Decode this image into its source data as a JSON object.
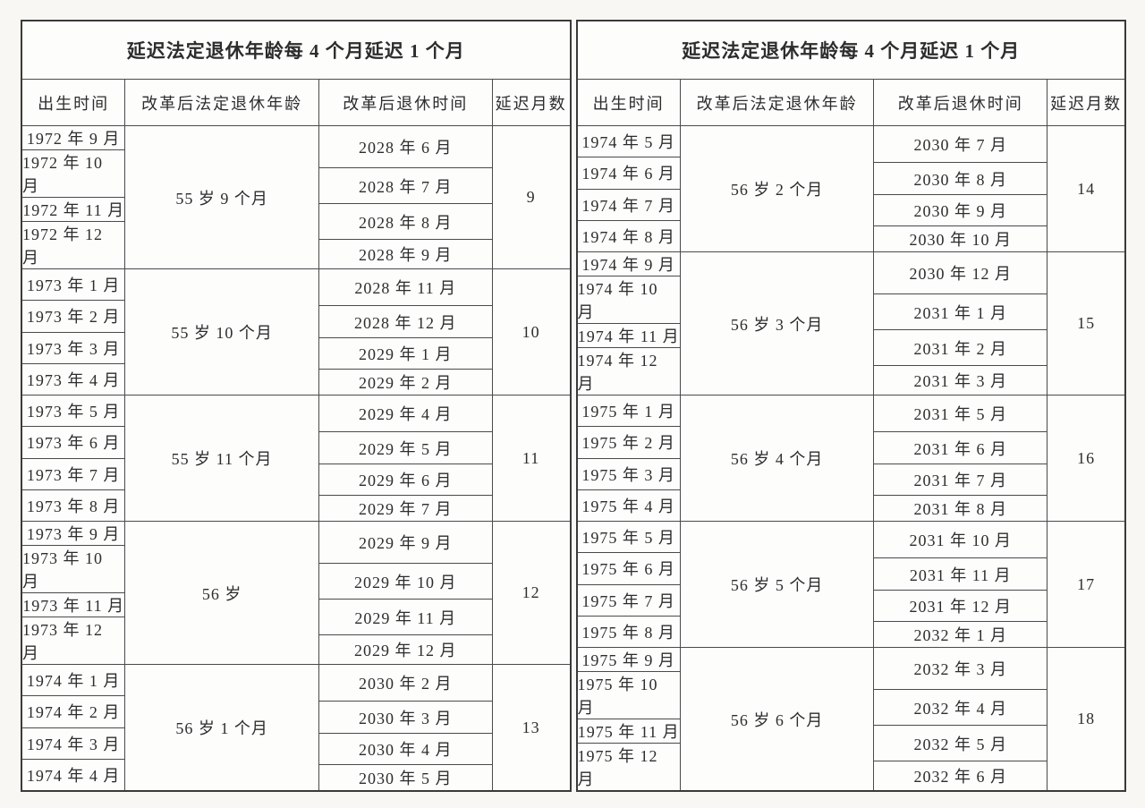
{
  "colors": {
    "page_background": "#f8f7f4",
    "table_background": "#fdfdfc",
    "outer_border": "#3a3a3a",
    "grid_line": "#4a4a4a",
    "text": "#2d2d2d"
  },
  "tables": [
    {
      "title": "延迟法定退休年龄每 4 个月延迟 1 个月",
      "columns": [
        "出生时间",
        "改革后法定退休年龄",
        "改革后退休时间",
        "延迟月数"
      ],
      "groups": [
        {
          "births": [
            "1972 年 9 月",
            "1972 年 10 月",
            "1972 年 11 月",
            "1972 年 12 月"
          ],
          "age": "55 岁 9 个月",
          "retirements": [
            "2028 年 6 月",
            "2028 年 7 月",
            "2028 年 8 月",
            "2028 年 9 月"
          ],
          "delay": "9"
        },
        {
          "births": [
            "1973 年 1 月",
            "1973 年 2 月",
            "1973 年 3 月",
            "1973 年 4 月"
          ],
          "age": "55 岁 10 个月",
          "retirements": [
            "2028 年 11 月",
            "2028 年 12 月",
            "2029 年 1 月",
            "2029 年 2 月"
          ],
          "delay": "10"
        },
        {
          "births": [
            "1973 年 5 月",
            "1973 年 6 月",
            "1973 年 7 月",
            "1973 年 8 月"
          ],
          "age": "55 岁 11 个月",
          "retirements": [
            "2029 年 4 月",
            "2029 年 5 月",
            "2029 年 6 月",
            "2029 年 7 月"
          ],
          "delay": "11"
        },
        {
          "births": [
            "1973 年 9 月",
            "1973 年 10 月",
            "1973 年 11 月",
            "1973 年 12 月"
          ],
          "age": "56 岁",
          "retirements": [
            "2029 年 9 月",
            "2029 年 10 月",
            "2029 年 11 月",
            "2029 年 12 月"
          ],
          "delay": "12"
        },
        {
          "births": [
            "1974 年 1 月",
            "1974 年 2 月",
            "1974 年 3 月",
            "1974 年 4 月"
          ],
          "age": "56 岁 1 个月",
          "retirements": [
            "2030 年 2 月",
            "2030 年 3 月",
            "2030 年 4 月",
            "2030 年 5 月"
          ],
          "delay": "13"
        }
      ]
    },
    {
      "title": "延迟法定退休年龄每 4 个月延迟 1 个月",
      "columns": [
        "出生时间",
        "改革后法定退休年龄",
        "改革后退休时间",
        "延迟月数"
      ],
      "groups": [
        {
          "births": [
            "1974 年 5 月",
            "1974 年 6 月",
            "1974 年 7 月",
            "1974 年 8 月"
          ],
          "age": "56 岁 2 个月",
          "retirements": [
            "2030 年 7 月",
            "2030 年 8 月",
            "2030 年 9 月",
            "2030 年 10 月"
          ],
          "delay": "14"
        },
        {
          "births": [
            "1974 年 9 月",
            "1974 年 10 月",
            "1974 年 11 月",
            "1974 年 12 月"
          ],
          "age": "56 岁 3 个月",
          "retirements": [
            "2030 年 12 月",
            "2031 年 1 月",
            "2031 年 2 月",
            "2031 年 3 月"
          ],
          "delay": "15"
        },
        {
          "births": [
            "1975 年 1 月",
            "1975 年 2 月",
            "1975 年 3 月",
            "1975 年 4 月"
          ],
          "age": "56 岁 4 个月",
          "retirements": [
            "2031 年 5 月",
            "2031 年 6 月",
            "2031 年 7 月",
            "2031 年 8 月"
          ],
          "delay": "16"
        },
        {
          "births": [
            "1975 年 5 月",
            "1975 年 6 月",
            "1975 年 7 月",
            "1975 年 8 月"
          ],
          "age": "56 岁 5 个月",
          "retirements": [
            "2031 年 10 月",
            "2031 年 11 月",
            "2031 年 12 月",
            "2032 年 1 月"
          ],
          "delay": "17"
        },
        {
          "births": [
            "1975 年 9 月",
            "1975 年 10 月",
            "1975 年 11 月",
            "1975 年 12 月"
          ],
          "age": "56 岁 6 个月",
          "retirements": [
            "2032 年 3 月",
            "2032 年 4 月",
            "2032 年 5 月",
            "2032 年 6 月"
          ],
          "delay": "18"
        }
      ]
    }
  ]
}
